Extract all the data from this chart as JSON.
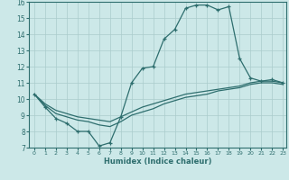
{
  "xlabel": "Humidex (Indice chaleur)",
  "background_color": "#cce8e8",
  "line_color": "#2e6e6e",
  "grid_color": "#aacccc",
  "xlim": [
    -0.5,
    23.3
  ],
  "ylim": [
    7,
    16
  ],
  "xticks": [
    0,
    1,
    2,
    3,
    4,
    5,
    6,
    7,
    8,
    9,
    10,
    11,
    12,
    13,
    14,
    15,
    16,
    17,
    18,
    19,
    20,
    21,
    22,
    23
  ],
  "yticks": [
    7,
    8,
    9,
    10,
    11,
    12,
    13,
    14,
    15,
    16
  ],
  "curve1_x": [
    0,
    1,
    2,
    3,
    4,
    5,
    6,
    7,
    8,
    9,
    10,
    11,
    12,
    13,
    14,
    15,
    16,
    17,
    18,
    19,
    20,
    21,
    22,
    23
  ],
  "curve1_y": [
    10.3,
    9.5,
    8.8,
    8.5,
    8.0,
    8.0,
    7.1,
    7.3,
    8.9,
    11.0,
    11.9,
    12.0,
    13.7,
    14.3,
    15.6,
    15.8,
    15.8,
    15.5,
    15.7,
    12.5,
    11.3,
    11.1,
    11.2,
    11.0
  ],
  "curve2_x": [
    0,
    1,
    2,
    3,
    4,
    5,
    6,
    7,
    8,
    9,
    10,
    11,
    12,
    13,
    14,
    15,
    16,
    17,
    18,
    19,
    20,
    21,
    22,
    23
  ],
  "curve2_y": [
    10.3,
    9.7,
    9.3,
    9.1,
    8.9,
    8.8,
    8.7,
    8.6,
    8.9,
    9.2,
    9.5,
    9.7,
    9.9,
    10.1,
    10.3,
    10.4,
    10.5,
    10.6,
    10.7,
    10.8,
    11.0,
    11.1,
    11.1,
    11.0
  ],
  "curve3_x": [
    0,
    1,
    2,
    3,
    4,
    5,
    6,
    7,
    8,
    9,
    10,
    11,
    12,
    13,
    14,
    15,
    16,
    17,
    18,
    19,
    20,
    21,
    22,
    23
  ],
  "curve3_y": [
    10.3,
    9.6,
    9.1,
    8.9,
    8.7,
    8.6,
    8.4,
    8.3,
    8.6,
    9.0,
    9.2,
    9.4,
    9.7,
    9.9,
    10.1,
    10.2,
    10.3,
    10.5,
    10.6,
    10.7,
    10.9,
    11.0,
    11.0,
    10.9
  ]
}
